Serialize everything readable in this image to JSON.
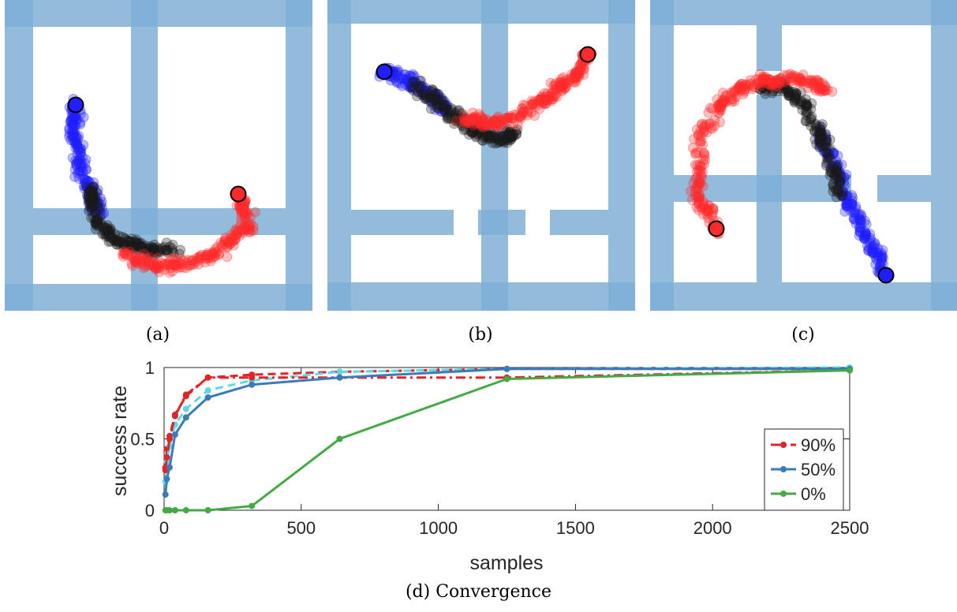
{
  "panels": [
    {
      "caption": "(a)",
      "walls": [
        [
          0,
          0,
          390,
          34
        ],
        [
          0,
          360,
          390,
          34
        ],
        [
          0,
          0,
          36,
          394
        ],
        [
          356,
          0,
          34,
          394
        ],
        [
          160,
          0,
          34,
          394
        ],
        [
          36,
          264,
          320,
          34
        ]
      ],
      "start": [
        90,
        133
      ],
      "goal": [
        296,
        246
      ],
      "paths": [
        {
          "color": "blue",
          "pts": [
            [
              90,
              133
            ],
            [
              88,
              170
            ],
            [
              95,
              210
            ],
            [
              110,
              245
            ],
            [
              120,
              270
            ]
          ]
        },
        {
          "color": "black",
          "pts": [
            [
              108,
              240
            ],
            [
              115,
              280
            ],
            [
              140,
              305
            ],
            [
              175,
              315
            ],
            [
              215,
              318
            ]
          ]
        },
        {
          "color": "red",
          "pts": [
            [
              150,
              320
            ],
            [
              190,
              338
            ],
            [
              240,
              335
            ],
            [
              285,
              310
            ],
            [
              310,
              282
            ],
            [
              296,
              246
            ]
          ]
        }
      ]
    },
    {
      "caption": "(b)",
      "walls": [
        [
          0,
          0,
          390,
          30
        ],
        [
          0,
          358,
          390,
          36
        ],
        [
          0,
          0,
          30,
          394
        ],
        [
          356,
          0,
          34,
          394
        ],
        [
          195,
          0,
          34,
          394
        ],
        [
          30,
          266,
          130,
          32
        ],
        [
          191,
          266,
          60,
          32
        ],
        [
          282,
          266,
          74,
          32
        ]
      ],
      "start": [
        72,
        91
      ],
      "goal": [
        330,
        69
      ],
      "paths": [
        {
          "color": "blue",
          "pts": [
            [
              72,
              91
            ],
            [
              100,
              100
            ],
            [
              130,
              120
            ],
            [
              150,
              140
            ]
          ]
        },
        {
          "color": "black",
          "pts": [
            [
              110,
              105
            ],
            [
              150,
              140
            ],
            [
              185,
              165
            ],
            [
              215,
              175
            ],
            [
              240,
              170
            ]
          ]
        },
        {
          "color": "red",
          "pts": [
            [
              170,
              150
            ],
            [
              210,
              158
            ],
            [
              250,
              145
            ],
            [
              285,
              120
            ],
            [
              315,
              95
            ],
            [
              330,
              69
            ]
          ]
        }
      ]
    },
    {
      "caption": "(c)",
      "walls": [
        [
          0,
          0,
          390,
          32
        ],
        [
          0,
          358,
          390,
          36
        ],
        [
          0,
          0,
          30,
          394
        ],
        [
          356,
          0,
          34,
          394
        ],
        [
          135,
          32,
          32,
          58
        ],
        [
          135,
          120,
          32,
          238
        ],
        [
          30,
          222,
          225,
          34
        ],
        [
          288,
          222,
          68,
          34
        ]
      ],
      "start": [
        299,
        349
      ],
      "goal": [
        84,
        290
      ],
      "paths": [
        {
          "color": "blue",
          "pts": [
            [
              299,
              349
            ],
            [
              280,
              310
            ],
            [
              255,
              265
            ],
            [
              235,
              215
            ],
            [
              215,
              165
            ]
          ]
        },
        {
          "color": "black",
          "pts": [
            [
              240,
              250
            ],
            [
              225,
              190
            ],
            [
              200,
              140
            ],
            [
              170,
              110
            ],
            [
              140,
              110
            ]
          ]
        },
        {
          "color": "red",
          "pts": [
            [
              84,
              290
            ],
            [
              60,
              245
            ],
            [
              65,
              170
            ],
            [
              95,
              125
            ],
            [
              140,
              103
            ],
            [
              185,
              100
            ],
            [
              225,
              115
            ]
          ]
        }
      ]
    }
  ],
  "colors": {
    "wall": "#7fafd6",
    "wall_dark": "#5d95c6",
    "blue": "#1f1fff",
    "black": "#1a1a1a",
    "red": "#ff2a2a"
  },
  "chart_data": {
    "type": "line",
    "xlabel": "samples",
    "ylabel": "success rate",
    "xlim": [
      0,
      2500
    ],
    "ylim": [
      0,
      1
    ],
    "xticks": [
      "0",
      "500",
      "1000",
      "1500",
      "2000",
      "2500"
    ],
    "yticks": [
      "0",
      "0.5",
      "1"
    ],
    "legend_position": "bottom-right",
    "series": [
      {
        "name": "90%",
        "color": "#e02428",
        "dash": "dashdot",
        "x": [
          5,
          10,
          20,
          40,
          80,
          160,
          320,
          640,
          1250,
          2500
        ],
        "y": [
          0.28,
          0.37,
          0.5,
          0.66,
          0.81,
          0.93,
          0.93,
          0.93,
          0.93,
          0.98
        ]
      },
      {
        "name": "50%",
        "color": "#3c7bb8",
        "dash": "solid",
        "x": [
          5,
          10,
          20,
          40,
          80,
          160,
          320,
          640,
          1250,
          2500
        ],
        "y": [
          0.11,
          0.22,
          0.3,
          0.53,
          0.65,
          0.79,
          0.88,
          0.93,
          0.99,
          0.99
        ]
      },
      {
        "name": "0%",
        "color": "#44aa44",
        "dash": "solid",
        "x": [
          5,
          10,
          20,
          40,
          80,
          160,
          320,
          640,
          1250,
          2500
        ],
        "y": [
          0,
          0,
          0,
          0,
          0,
          0,
          0.03,
          0.5,
          0.92,
          0.98
        ]
      },
      {
        "color": "#e02428",
        "dash": "dashed",
        "x": [
          5,
          10,
          20,
          40,
          80,
          160,
          320,
          640,
          1250,
          2500
        ],
        "y": [
          0.3,
          0.43,
          0.52,
          0.67,
          0.8,
          0.93,
          0.95,
          0.97,
          0.99,
          0.99
        ]
      },
      {
        "color": "#5fd8e8",
        "dash": "dashed",
        "x": [
          5,
          10,
          20,
          40,
          80,
          160,
          320,
          640,
          1250,
          2500
        ],
        "y": [
          0.2,
          0.34,
          0.45,
          0.6,
          0.71,
          0.84,
          0.91,
          0.97,
          0.99,
          1.0
        ]
      }
    ]
  },
  "figure_caption": "(d) Convergence"
}
